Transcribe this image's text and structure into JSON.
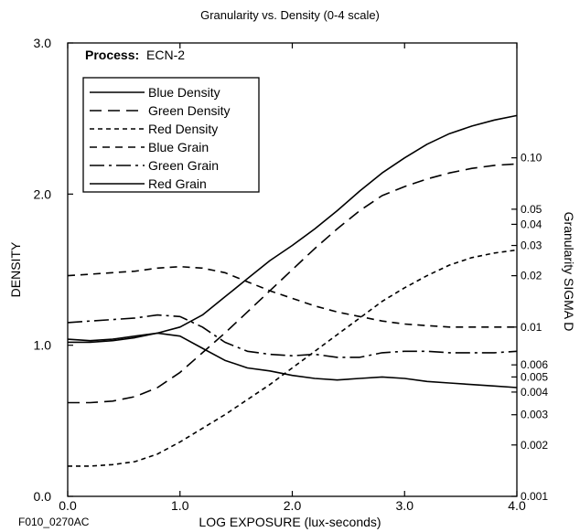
{
  "chart_data": {
    "type": "line",
    "title": "Granularity vs. Density (0-4 scale)",
    "process_label": "Process:",
    "process_value": "ECN-2",
    "xlabel": "LOG EXPOSURE (lux-seconds)",
    "ylabel": "DENSITY",
    "y2label": "Granularity SIGMA D",
    "figure_id": "F010_0270AC",
    "xlim": [
      0,
      4
    ],
    "ylim": [
      0,
      3
    ],
    "x_ticks": [
      {
        "value": 0,
        "label": "0.0"
      },
      {
        "value": 1,
        "label": "1.0"
      },
      {
        "value": 2,
        "label": "2.0"
      },
      {
        "value": 3,
        "label": "3.0"
      },
      {
        "value": 4,
        "label": "4.0"
      }
    ],
    "y_ticks": [
      {
        "value": 0,
        "label": "0.0"
      },
      {
        "value": 1,
        "label": "1.0"
      },
      {
        "value": 2,
        "label": "2.0"
      },
      {
        "value": 3,
        "label": "3.0"
      }
    ],
    "y2_scale": "log",
    "y2_ticks": [
      {
        "value": 0.001,
        "label": "0.001",
        "density_pos": 0.0
      },
      {
        "value": 0.002,
        "label": "0.002",
        "density_pos": 0.34
      },
      {
        "value": 0.003,
        "label": "0.003",
        "density_pos": 0.54
      },
      {
        "value": 0.004,
        "label": "0.004",
        "density_pos": 0.69
      },
      {
        "value": 0.005,
        "label": "0.005",
        "density_pos": 0.79
      },
      {
        "value": 0.006,
        "label": "0.006",
        "density_pos": 0.87
      },
      {
        "value": 0.01,
        "label": "0.01",
        "density_pos": 1.12
      },
      {
        "value": 0.02,
        "label": "0.02",
        "density_pos": 1.46
      },
      {
        "value": 0.03,
        "label": "0.03",
        "density_pos": 1.66
      },
      {
        "value": 0.04,
        "label": "0.04",
        "density_pos": 1.8
      },
      {
        "value": 0.05,
        "label": "0.05",
        "density_pos": 1.9
      },
      {
        "value": 0.1,
        "label": "0.10",
        "density_pos": 2.24
      }
    ],
    "legend_position": "top-left",
    "series": [
      {
        "name": "Blue Density",
        "dash": "solid",
        "color": "#000000",
        "x": [
          0,
          0.2,
          0.4,
          0.6,
          0.8,
          1.0,
          1.2,
          1.4,
          1.6,
          1.8,
          2.0,
          2.2,
          2.4,
          2.6,
          2.8,
          3.0,
          3.2,
          3.4,
          3.6,
          3.8,
          4.0
        ],
        "y": [
          1.02,
          1.02,
          1.03,
          1.05,
          1.08,
          1.12,
          1.2,
          1.32,
          1.44,
          1.56,
          1.66,
          1.77,
          1.89,
          2.02,
          2.14,
          2.24,
          2.33,
          2.4,
          2.45,
          2.49,
          2.52
        ]
      },
      {
        "name": "Green Density",
        "dash": "longdash",
        "color": "#000000",
        "x": [
          0,
          0.2,
          0.4,
          0.6,
          0.8,
          1.0,
          1.2,
          1.4,
          1.6,
          1.8,
          2.0,
          2.2,
          2.4,
          2.6,
          2.8,
          3.0,
          3.2,
          3.4,
          3.6,
          3.8,
          4.0
        ],
        "y": [
          0.62,
          0.62,
          0.63,
          0.66,
          0.72,
          0.82,
          0.95,
          1.08,
          1.22,
          1.36,
          1.5,
          1.64,
          1.77,
          1.89,
          1.99,
          2.05,
          2.1,
          2.14,
          2.17,
          2.19,
          2.2
        ]
      },
      {
        "name": "Red Density",
        "dash": "shortdash",
        "color": "#000000",
        "x": [
          0,
          0.2,
          0.4,
          0.6,
          0.8,
          1.0,
          1.2,
          1.4,
          1.6,
          1.8,
          2.0,
          2.2,
          2.4,
          2.6,
          2.8,
          3.0,
          3.2,
          3.4,
          3.6,
          3.8,
          4.0
        ],
        "y": [
          0.2,
          0.2,
          0.21,
          0.23,
          0.28,
          0.36,
          0.45,
          0.54,
          0.64,
          0.74,
          0.85,
          0.96,
          1.07,
          1.18,
          1.29,
          1.38,
          1.46,
          1.53,
          1.58,
          1.61,
          1.63
        ]
      },
      {
        "name": "Blue Grain",
        "dash": "mediumdash",
        "color": "#000000",
        "x": [
          0,
          0.2,
          0.4,
          0.6,
          0.8,
          1.0,
          1.2,
          1.4,
          1.6,
          1.8,
          2.0,
          2.2,
          2.4,
          2.6,
          2.8,
          3.0,
          3.2,
          3.4,
          3.6,
          3.8,
          4.0
        ],
        "y": [
          1.46,
          1.47,
          1.48,
          1.49,
          1.51,
          1.52,
          1.51,
          1.48,
          1.42,
          1.36,
          1.31,
          1.26,
          1.22,
          1.19,
          1.16,
          1.14,
          1.13,
          1.12,
          1.12,
          1.12,
          1.12
        ]
      },
      {
        "name": "Green Grain",
        "dash": "dashdot",
        "color": "#000000",
        "x": [
          0,
          0.2,
          0.4,
          0.6,
          0.8,
          1.0,
          1.2,
          1.4,
          1.6,
          1.8,
          2.0,
          2.2,
          2.4,
          2.6,
          2.8,
          3.0,
          3.2,
          3.4,
          3.6,
          3.8,
          4.0
        ],
        "y": [
          1.15,
          1.16,
          1.17,
          1.18,
          1.2,
          1.19,
          1.12,
          1.02,
          0.96,
          0.94,
          0.93,
          0.94,
          0.92,
          0.92,
          0.95,
          0.96,
          0.96,
          0.95,
          0.95,
          0.95,
          0.96
        ]
      },
      {
        "name": "Red Grain",
        "dash": "solid",
        "color": "#000000",
        "x": [
          0,
          0.2,
          0.4,
          0.6,
          0.8,
          1.0,
          1.2,
          1.4,
          1.6,
          1.8,
          2.0,
          2.2,
          2.4,
          2.6,
          2.8,
          3.0,
          3.2,
          3.4,
          3.6,
          3.8,
          4.0
        ],
        "y": [
          1.04,
          1.03,
          1.04,
          1.06,
          1.08,
          1.06,
          0.98,
          0.9,
          0.85,
          0.83,
          0.8,
          0.78,
          0.77,
          0.78,
          0.79,
          0.78,
          0.76,
          0.75,
          0.74,
          0.73,
          0.72
        ]
      }
    ]
  }
}
